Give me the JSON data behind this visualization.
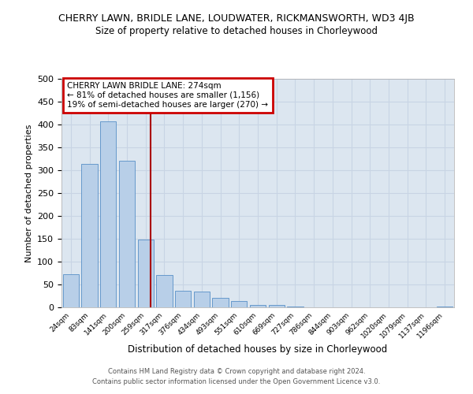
{
  "title": "CHERRY LAWN, BRIDLE LANE, LOUDWATER, RICKMANSWORTH, WD3 4JB",
  "subtitle": "Size of property relative to detached houses in Chorleywood",
  "xlabel": "Distribution of detached houses by size in Chorleywood",
  "ylabel": "Number of detached properties",
  "bar_labels": [
    "24sqm",
    "83sqm",
    "141sqm",
    "200sqm",
    "259sqm",
    "317sqm",
    "376sqm",
    "434sqm",
    "493sqm",
    "551sqm",
    "610sqm",
    "669sqm",
    "727sqm",
    "786sqm",
    "844sqm",
    "903sqm",
    "962sqm",
    "1020sqm",
    "1079sqm",
    "1137sqm",
    "1196sqm"
  ],
  "bar_values": [
    73,
    313,
    407,
    320,
    148,
    70,
    37,
    35,
    20,
    13,
    6,
    5,
    1,
    0,
    0,
    0,
    0,
    0,
    0,
    0,
    2
  ],
  "bar_color": "#b8cfe8",
  "bar_edge_color": "#6699cc",
  "grid_color": "#c8d4e4",
  "background_color": "#dce6f0",
  "vline_x": 4.27,
  "vline_color": "#aa0000",
  "annotation_title": "CHERRY LAWN BRIDLE LANE: 274sqm",
  "annotation_line1": "← 81% of detached houses are smaller (1,156)",
  "annotation_line2": "19% of semi-detached houses are larger (270) →",
  "annotation_box_edge": "#cc0000",
  "ylim": [
    0,
    500
  ],
  "yticks": [
    0,
    50,
    100,
    150,
    200,
    250,
    300,
    350,
    400,
    450,
    500
  ],
  "footer1": "Contains HM Land Registry data © Crown copyright and database right 2024.",
  "footer2": "Contains public sector information licensed under the Open Government Licence v3.0."
}
